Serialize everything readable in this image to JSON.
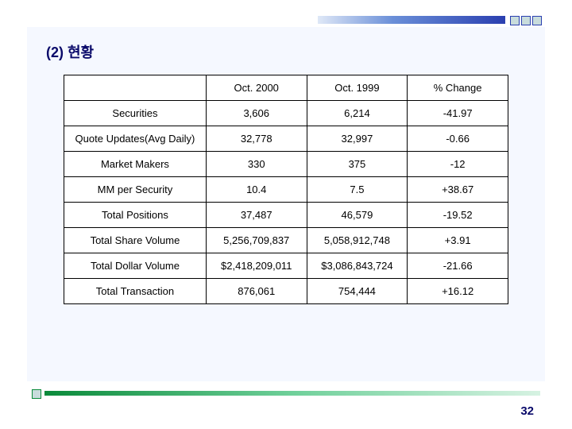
{
  "title": "(2) 현황",
  "page_number": "32",
  "table": {
    "columns": [
      "",
      "Oct. 2000",
      "Oct. 1999",
      "% Change"
    ],
    "rows": [
      [
        "Securities",
        "3,606",
        "6,214",
        "-41.97"
      ],
      [
        "Quote Updates(Avg Daily)",
        "32,778",
        "32,997",
        "-0.66"
      ],
      [
        "Market Makers",
        "330",
        "375",
        "-12"
      ],
      [
        "MM per Security",
        "10.4",
        "7.5",
        "+38.67"
      ],
      [
        "Total Positions",
        "37,487",
        "46,579",
        "-19.52"
      ],
      [
        "Total Share Volume",
        "5,256,709,837",
        "5,058,912,748",
        "+3.91"
      ],
      [
        "Total Dollar Volume",
        "$2,418,209,011",
        "$3,086,843,724",
        "-21.66"
      ],
      [
        "Total Transaction",
        "876,061",
        "754,444",
        "+16.12"
      ]
    ]
  },
  "styling": {
    "slide_bg": "#ffffff",
    "content_bg": "#f5f8ff",
    "title_color": "#0a0a6a",
    "table_border": "#000000",
    "table_bg": "#ffffff",
    "cell_font_size": 13,
    "title_font_size": 18,
    "top_accent_gradient": [
      "#dfe8f7",
      "#6a8fd8",
      "#2a3fb0"
    ],
    "bottom_accent_gradient": [
      "#0a8a3a",
      "#6fd09a",
      "#d6f2e2"
    ],
    "square_fill": "#c8dcdc",
    "square_shadow": "#8aa0a0",
    "page_num_color": "#0a0a6a"
  }
}
